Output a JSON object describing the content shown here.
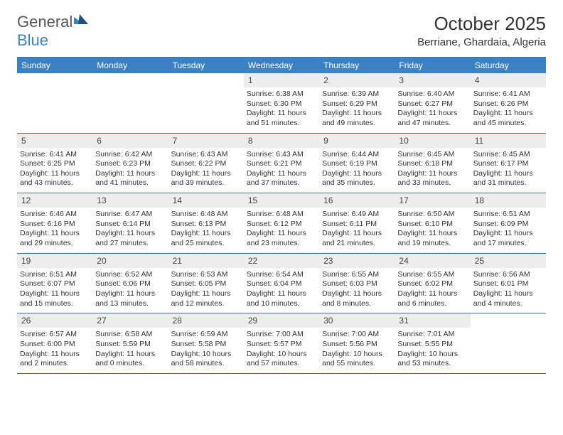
{
  "brand": {
    "text1": "General",
    "text2": "Blue"
  },
  "title": "October 2025",
  "location": "Berriane, Ghardaia, Algeria",
  "colors": {
    "header_bg": "#3b82c4",
    "header_text": "#ffffff",
    "border": "#3b6fa8",
    "daynum_bg": "#ededed",
    "text": "#333333",
    "logo_gray": "#555555",
    "logo_blue": "#3b82c4"
  },
  "dayHeaders": [
    "Sunday",
    "Monday",
    "Tuesday",
    "Wednesday",
    "Thursday",
    "Friday",
    "Saturday"
  ],
  "weeks": [
    [
      {
        "n": "",
        "lines": []
      },
      {
        "n": "",
        "lines": []
      },
      {
        "n": "",
        "lines": []
      },
      {
        "n": "1",
        "lines": [
          "Sunrise: 6:38 AM",
          "Sunset: 6:30 PM",
          "Daylight: 11 hours and 51 minutes."
        ]
      },
      {
        "n": "2",
        "lines": [
          "Sunrise: 6:39 AM",
          "Sunset: 6:29 PM",
          "Daylight: 11 hours and 49 minutes."
        ]
      },
      {
        "n": "3",
        "lines": [
          "Sunrise: 6:40 AM",
          "Sunset: 6:27 PM",
          "Daylight: 11 hours and 47 minutes."
        ]
      },
      {
        "n": "4",
        "lines": [
          "Sunrise: 6:41 AM",
          "Sunset: 6:26 PM",
          "Daylight: 11 hours and 45 minutes."
        ]
      }
    ],
    [
      {
        "n": "5",
        "lines": [
          "Sunrise: 6:41 AM",
          "Sunset: 6:25 PM",
          "Daylight: 11 hours and 43 minutes."
        ]
      },
      {
        "n": "6",
        "lines": [
          "Sunrise: 6:42 AM",
          "Sunset: 6:23 PM",
          "Daylight: 11 hours and 41 minutes."
        ]
      },
      {
        "n": "7",
        "lines": [
          "Sunrise: 6:43 AM",
          "Sunset: 6:22 PM",
          "Daylight: 11 hours and 39 minutes."
        ]
      },
      {
        "n": "8",
        "lines": [
          "Sunrise: 6:43 AM",
          "Sunset: 6:21 PM",
          "Daylight: 11 hours and 37 minutes."
        ]
      },
      {
        "n": "9",
        "lines": [
          "Sunrise: 6:44 AM",
          "Sunset: 6:19 PM",
          "Daylight: 11 hours and 35 minutes."
        ]
      },
      {
        "n": "10",
        "lines": [
          "Sunrise: 6:45 AM",
          "Sunset: 6:18 PM",
          "Daylight: 11 hours and 33 minutes."
        ]
      },
      {
        "n": "11",
        "lines": [
          "Sunrise: 6:45 AM",
          "Sunset: 6:17 PM",
          "Daylight: 11 hours and 31 minutes."
        ]
      }
    ],
    [
      {
        "n": "12",
        "lines": [
          "Sunrise: 6:46 AM",
          "Sunset: 6:16 PM",
          "Daylight: 11 hours and 29 minutes."
        ]
      },
      {
        "n": "13",
        "lines": [
          "Sunrise: 6:47 AM",
          "Sunset: 6:14 PM",
          "Daylight: 11 hours and 27 minutes."
        ]
      },
      {
        "n": "14",
        "lines": [
          "Sunrise: 6:48 AM",
          "Sunset: 6:13 PM",
          "Daylight: 11 hours and 25 minutes."
        ]
      },
      {
        "n": "15",
        "lines": [
          "Sunrise: 6:48 AM",
          "Sunset: 6:12 PM",
          "Daylight: 11 hours and 23 minutes."
        ]
      },
      {
        "n": "16",
        "lines": [
          "Sunrise: 6:49 AM",
          "Sunset: 6:11 PM",
          "Daylight: 11 hours and 21 minutes."
        ]
      },
      {
        "n": "17",
        "lines": [
          "Sunrise: 6:50 AM",
          "Sunset: 6:10 PM",
          "Daylight: 11 hours and 19 minutes."
        ]
      },
      {
        "n": "18",
        "lines": [
          "Sunrise: 6:51 AM",
          "Sunset: 6:09 PM",
          "Daylight: 11 hours and 17 minutes."
        ]
      }
    ],
    [
      {
        "n": "19",
        "lines": [
          "Sunrise: 6:51 AM",
          "Sunset: 6:07 PM",
          "Daylight: 11 hours and 15 minutes."
        ]
      },
      {
        "n": "20",
        "lines": [
          "Sunrise: 6:52 AM",
          "Sunset: 6:06 PM",
          "Daylight: 11 hours and 13 minutes."
        ]
      },
      {
        "n": "21",
        "lines": [
          "Sunrise: 6:53 AM",
          "Sunset: 6:05 PM",
          "Daylight: 11 hours and 12 minutes."
        ]
      },
      {
        "n": "22",
        "lines": [
          "Sunrise: 6:54 AM",
          "Sunset: 6:04 PM",
          "Daylight: 11 hours and 10 minutes."
        ]
      },
      {
        "n": "23",
        "lines": [
          "Sunrise: 6:55 AM",
          "Sunset: 6:03 PM",
          "Daylight: 11 hours and 8 minutes."
        ]
      },
      {
        "n": "24",
        "lines": [
          "Sunrise: 6:55 AM",
          "Sunset: 6:02 PM",
          "Daylight: 11 hours and 6 minutes."
        ]
      },
      {
        "n": "25",
        "lines": [
          "Sunrise: 6:56 AM",
          "Sunset: 6:01 PM",
          "Daylight: 11 hours and 4 minutes."
        ]
      }
    ],
    [
      {
        "n": "26",
        "lines": [
          "Sunrise: 6:57 AM",
          "Sunset: 6:00 PM",
          "Daylight: 11 hours and 2 minutes."
        ]
      },
      {
        "n": "27",
        "lines": [
          "Sunrise: 6:58 AM",
          "Sunset: 5:59 PM",
          "Daylight: 11 hours and 0 minutes."
        ]
      },
      {
        "n": "28",
        "lines": [
          "Sunrise: 6:59 AM",
          "Sunset: 5:58 PM",
          "Daylight: 10 hours and 58 minutes."
        ]
      },
      {
        "n": "29",
        "lines": [
          "Sunrise: 7:00 AM",
          "Sunset: 5:57 PM",
          "Daylight: 10 hours and 57 minutes."
        ]
      },
      {
        "n": "30",
        "lines": [
          "Sunrise: 7:00 AM",
          "Sunset: 5:56 PM",
          "Daylight: 10 hours and 55 minutes."
        ]
      },
      {
        "n": "31",
        "lines": [
          "Sunrise: 7:01 AM",
          "Sunset: 5:55 PM",
          "Daylight: 10 hours and 53 minutes."
        ]
      },
      {
        "n": "",
        "lines": []
      }
    ]
  ]
}
